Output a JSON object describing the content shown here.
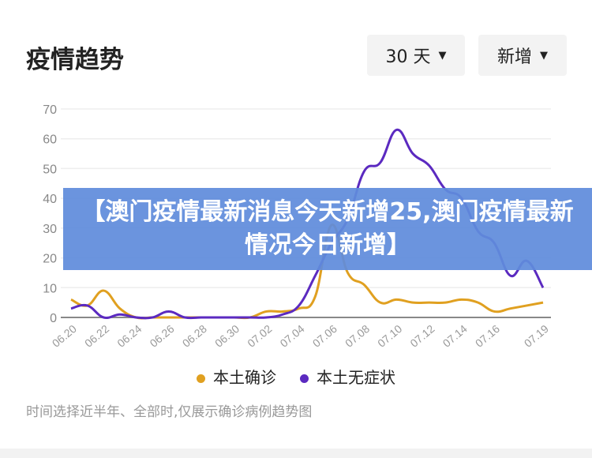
{
  "header": {
    "title": "疫情趋势",
    "range_select": "30 天",
    "metric_select": "新增"
  },
  "banner": "【澳门疫情最新消息今天新增25,澳门疫情最新情况今日新增】",
  "note": "时间选择近半年、全部时,仅展示确诊病例趋势图",
  "chart_data": {
    "type": "line",
    "x": [
      "06.20",
      "06.21",
      "06.22",
      "06.23",
      "06.24",
      "06.25",
      "06.26",
      "06.27",
      "06.28",
      "06.29",
      "06.30",
      "07.01",
      "07.02",
      "07.03",
      "07.04",
      "07.05",
      "07.06",
      "07.07",
      "07.08",
      "07.09",
      "07.10",
      "07.11",
      "07.12",
      "07.13",
      "07.14",
      "07.15",
      "07.16",
      "07.17",
      "07.18",
      "07.19"
    ],
    "tick_labels": [
      "06.20",
      "06.22",
      "06.24",
      "06.26",
      "06.28",
      "06.30",
      "07.02",
      "07.04",
      "07.06",
      "07.08",
      "07.10",
      "07.12",
      "07.14",
      "07.16",
      "07.19"
    ],
    "yticks": [
      0,
      10,
      20,
      30,
      40,
      50,
      60,
      70
    ],
    "ylim": [
      0,
      70
    ],
    "grid": true,
    "legend": "bottom",
    "series": [
      {
        "name": "本土确诊",
        "color": "#e0a020",
        "values": [
          6,
          4,
          9,
          3,
          0,
          0,
          0,
          0,
          0,
          0,
          0,
          0,
          2,
          2,
          3,
          7,
          31,
          15,
          11,
          5,
          6,
          5,
          5,
          5,
          6,
          5,
          2,
          3,
          4,
          5
        ]
      },
      {
        "name": "本土无症状",
        "color": "#5b2ac0",
        "values": [
          3,
          4,
          0,
          1,
          0,
          0,
          2,
          0,
          0,
          0,
          0,
          0,
          0,
          1,
          4,
          14,
          25,
          33,
          49,
          52,
          63,
          55,
          51,
          43,
          40,
          29,
          25,
          14,
          19,
          10
        ]
      }
    ]
  }
}
